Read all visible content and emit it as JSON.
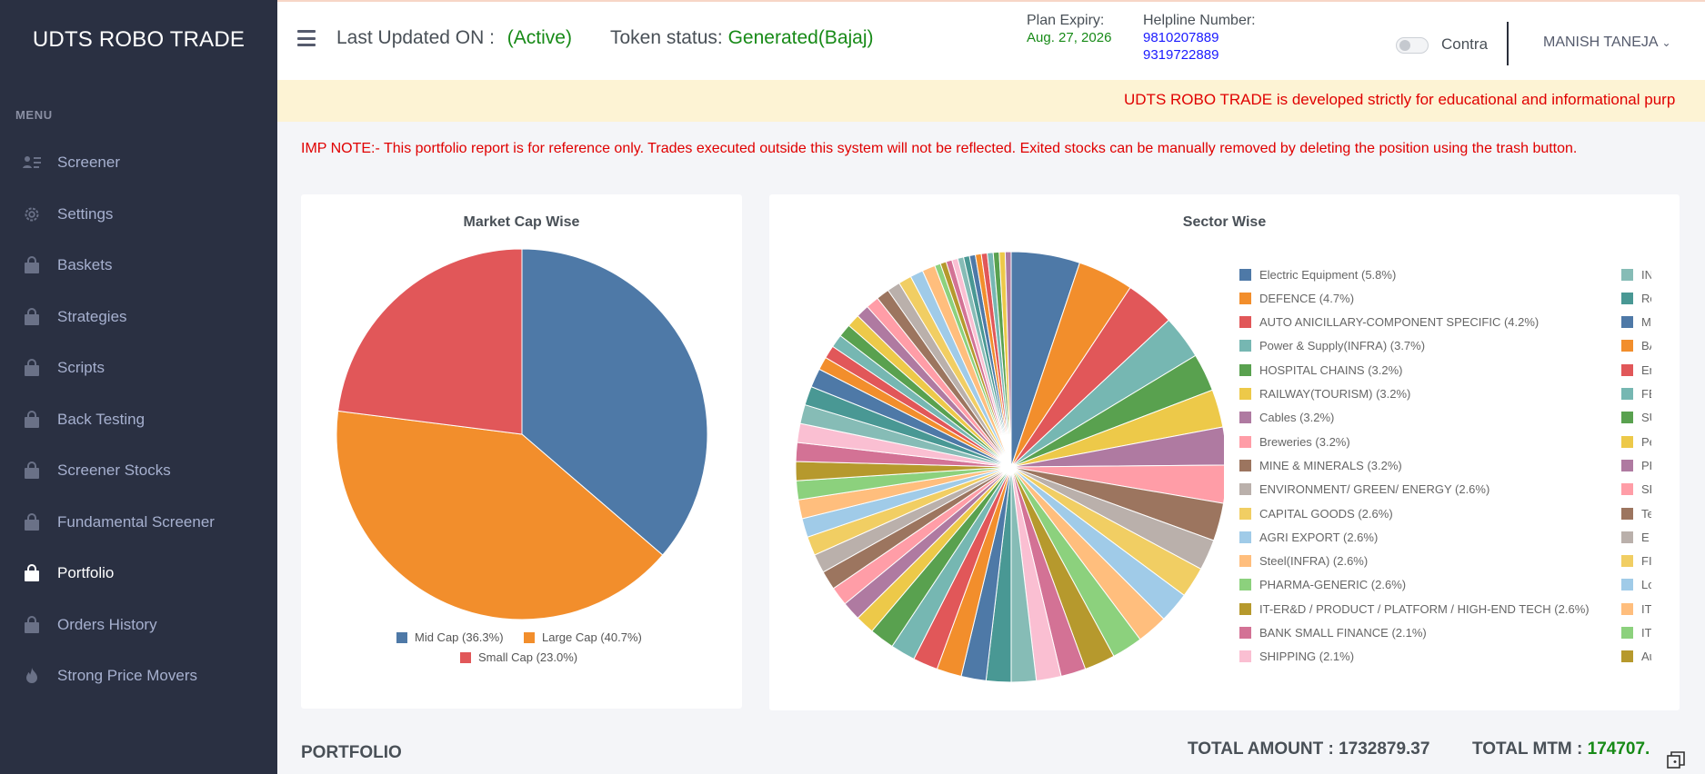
{
  "brand": "UDTS ROBO TRADE",
  "menu_title": "MENU",
  "nav": [
    {
      "label": "Screener",
      "icon": "list-icon"
    },
    {
      "label": "Settings",
      "icon": "gear-icon"
    },
    {
      "label": "Baskets",
      "icon": "bag-icon"
    },
    {
      "label": "Strategies",
      "icon": "bag-icon"
    },
    {
      "label": "Scripts",
      "icon": "bag-icon"
    },
    {
      "label": "Back Testing",
      "icon": "bag-icon"
    },
    {
      "label": "Screener Stocks",
      "icon": "bag-icon"
    },
    {
      "label": "Fundamental Screener",
      "icon": "bag-icon"
    },
    {
      "label": "Portfolio",
      "icon": "bag-icon",
      "active": true
    },
    {
      "label": "Orders History",
      "icon": "bag-icon"
    },
    {
      "label": "Strong Price Movers",
      "icon": "flame-icon"
    }
  ],
  "header": {
    "last_updated_label": "Last Updated ON :",
    "last_updated_value": "(Active)",
    "token_label": "Token status:",
    "token_value": "Generated(Bajaj)",
    "plan_label": "Plan Expiry:",
    "plan_value": "Aug. 27, 2026",
    "helpline_label": "Helpline Number:",
    "helpline_1": "9810207889",
    "helpline_2": "9319722889",
    "contra_label": "Contra",
    "user_name": "MANISH TANEJA"
  },
  "marquee_text": "UDTS ROBO TRADE is developed strictly for educational and informational purp",
  "imp_note": "IMP NOTE:- This portfolio report is for reference only. Trades executed outside this system will not be reflected. Exited stocks can be manually removed by deleting the position using the trash button.",
  "portfolio_title": "PORTFOLIO",
  "totals": {
    "amount_label": "TOTAL AMOUNT :",
    "amount_value": "1732879.37",
    "mtm_label": "TOTAL MTM :",
    "mtm_value": "174707."
  },
  "colors": {
    "sidebar": "#2a3042",
    "green": "#178a17",
    "red": "#e00000",
    "blue": "#4e79a7",
    "orange": "#f28e2c",
    "salmon": "#e15759"
  },
  "chart_data": [
    {
      "type": "pie",
      "title": "Market Cap Wise",
      "legend_position": "bottom",
      "slices": [
        {
          "label": "Mid Cap (36.3%)",
          "value": 36.3,
          "color": "#4e79a7"
        },
        {
          "label": "Large Cap (40.7%)",
          "value": 40.7,
          "color": "#f28e2c"
        },
        {
          "label": "Small Cap (23.0%)",
          "value": 23.0,
          "color": "#e15759"
        }
      ]
    },
    {
      "type": "pie",
      "title": "Sector Wise",
      "legend_position": "right",
      "palette": [
        "#4e79a7",
        "#f28e2c",
        "#e15759",
        "#76b7b2",
        "#59a14f",
        "#edc949",
        "#af7aa1",
        "#ff9da7",
        "#9c755f",
        "#bab0ab",
        "#f1ce63",
        "#a0cbe8",
        "#ffbe7d",
        "#8cd17d",
        "#b6992d",
        "#d37295",
        "#fabfd2",
        "#86bcb6",
        "#499894"
      ],
      "slices": [
        {
          "label": "Electric Equipment (5.8%)",
          "value": 5.8
        },
        {
          "label": "DEFENCE (4.7%)",
          "value": 4.7
        },
        {
          "label": "AUTO ANICILLARY-COMPONENT SPECIFIC (4.2%)",
          "value": 4.2
        },
        {
          "label": "Power & Supply(INFRA) (3.7%)",
          "value": 3.7
        },
        {
          "label": "HOSPITAL CHAINS (3.2%)",
          "value": 3.2
        },
        {
          "label": "RAILWAY(TOURISM) (3.2%)",
          "value": 3.2
        },
        {
          "label": "Cables (3.2%)",
          "value": 3.2
        },
        {
          "label": "Breweries (3.2%)",
          "value": 3.2
        },
        {
          "label": "MINE & MINERALS (3.2%)",
          "value": 3.2
        },
        {
          "label": "ENVIRONMENT/ GREEN/ ENERGY (2.6%)",
          "value": 2.6
        },
        {
          "label": "CAPITAL GOODS (2.6%)",
          "value": 2.6
        },
        {
          "label": "AGRI EXPORT (2.6%)",
          "value": 2.6
        },
        {
          "label": "Steel(INFRA) (2.6%)",
          "value": 2.6
        },
        {
          "label": "PHARMA-GENERIC (2.6%)",
          "value": 2.6
        },
        {
          "label": "IT-ER&D / PRODUCT / PLATFORM / HIGH-END TECH (2.6%)",
          "value": 2.6
        },
        {
          "label": "BANK SMALL FINANCE (2.1%)",
          "value": 2.1
        },
        {
          "label": "SHIPPING (2.1%)",
          "value": 2.1
        },
        {
          "label": "IN",
          "value": 2.1
        },
        {
          "label": "Re",
          "value": 2.1
        },
        {
          "label": "Me",
          "value": 2.1
        },
        {
          "label": "BA",
          "value": 2.1
        },
        {
          "label": "En",
          "value": 2.1
        },
        {
          "label": "FE",
          "value": 2.1
        },
        {
          "label": "SU",
          "value": 2.1
        },
        {
          "label": "Pe",
          "value": 1.6
        },
        {
          "label": "PH",
          "value": 1.6
        },
        {
          "label": "SE",
          "value": 1.6
        },
        {
          "label": "Te",
          "value": 1.6
        },
        {
          "label": "E (",
          "value": 1.6
        },
        {
          "label": "FII",
          "value": 1.6
        },
        {
          "label": "Lo",
          "value": 1.6
        },
        {
          "label": "IT-",
          "value": 1.6
        },
        {
          "label": "IT-",
          "value": 1.6
        },
        {
          "label": "Au",
          "value": 1.6
        },
        {
          "value": 1.6
        },
        {
          "value": 1.6
        },
        {
          "value": 1.6
        },
        {
          "value": 1.6
        },
        {
          "value": 1.6
        },
        {
          "value": 1.1
        },
        {
          "value": 1.1
        },
        {
          "value": 1.1
        },
        {
          "value": 1.1
        },
        {
          "value": 1.1
        },
        {
          "value": 1.1
        },
        {
          "value": 1.1
        },
        {
          "value": 1.1
        },
        {
          "value": 1.1
        },
        {
          "value": 1.1
        },
        {
          "value": 1.1
        },
        {
          "value": 1.1
        },
        {
          "value": 0.5
        },
        {
          "value": 0.5
        },
        {
          "value": 0.5
        },
        {
          "value": 0.5
        },
        {
          "value": 0.5
        },
        {
          "value": 0.5
        },
        {
          "value": 0.5
        },
        {
          "value": 0.5
        },
        {
          "value": 0.5
        },
        {
          "value": 0.5
        },
        {
          "value": 0.5
        },
        {
          "value": 0.5
        },
        {
          "value": 0.5
        }
      ]
    }
  ]
}
